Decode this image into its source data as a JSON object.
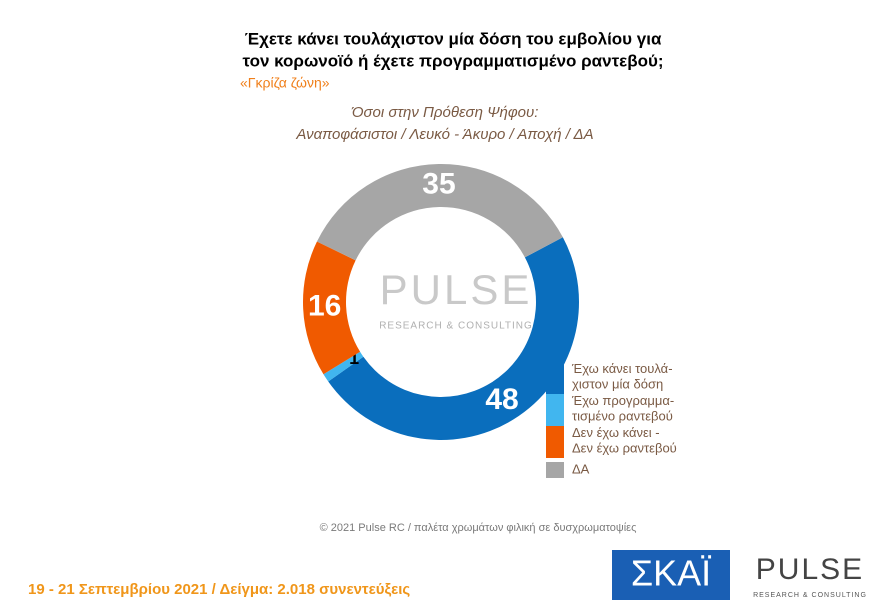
{
  "chart_data": {
    "type": "donut",
    "title": [
      "Έχετε κάνει τουλάχιστον μία δόση του εμβολίου για",
      "τον κορωνοϊό ή έχετε προγραμματισμένο ραντεβού;"
    ],
    "subtitle": "«Γκρίζα ζώνη»",
    "note": [
      "Όσοι στην Πρόθεση Ψήφου:",
      "Αναποφάσιστοι / Λευκό - Άκυρο / Αποχή / ΔΑ"
    ],
    "categories": [
      "Έχω κάνει τουλά-\nχιστον μία δόση",
      "Έχω προγραμμα-\nτισμένο ραντεβού",
      "Δεν έχω κάνει -\nΔεν έχω ραντεβού",
      "ΔΑ"
    ],
    "values": [
      48,
      1,
      16,
      35
    ],
    "colors": [
      "#0a6ebd",
      "#41b6ef",
      "#f05a00",
      "#a6a6a6"
    ],
    "label_colors": [
      "#ffffff",
      "#000000",
      "#ffffff",
      "#ffffff"
    ],
    "watermark": [
      "PULSE",
      "RESEARCH & CONSULTING"
    ]
  },
  "footer": {
    "credit": "© 2021 Pulse RC  /  παλέτα χρωμάτων φιλική σε δυσχρωματοψίες",
    "fieldwork": "19 - 21 Σεπτεμβρίου 2021  /  Δείγμα:  2.018 συνεντεύξεις",
    "logo_left": "ΣΚΑΪ",
    "logo_right": "PULSE",
    "logo_right_sub": "RESEARCH & CONSULTING"
  }
}
